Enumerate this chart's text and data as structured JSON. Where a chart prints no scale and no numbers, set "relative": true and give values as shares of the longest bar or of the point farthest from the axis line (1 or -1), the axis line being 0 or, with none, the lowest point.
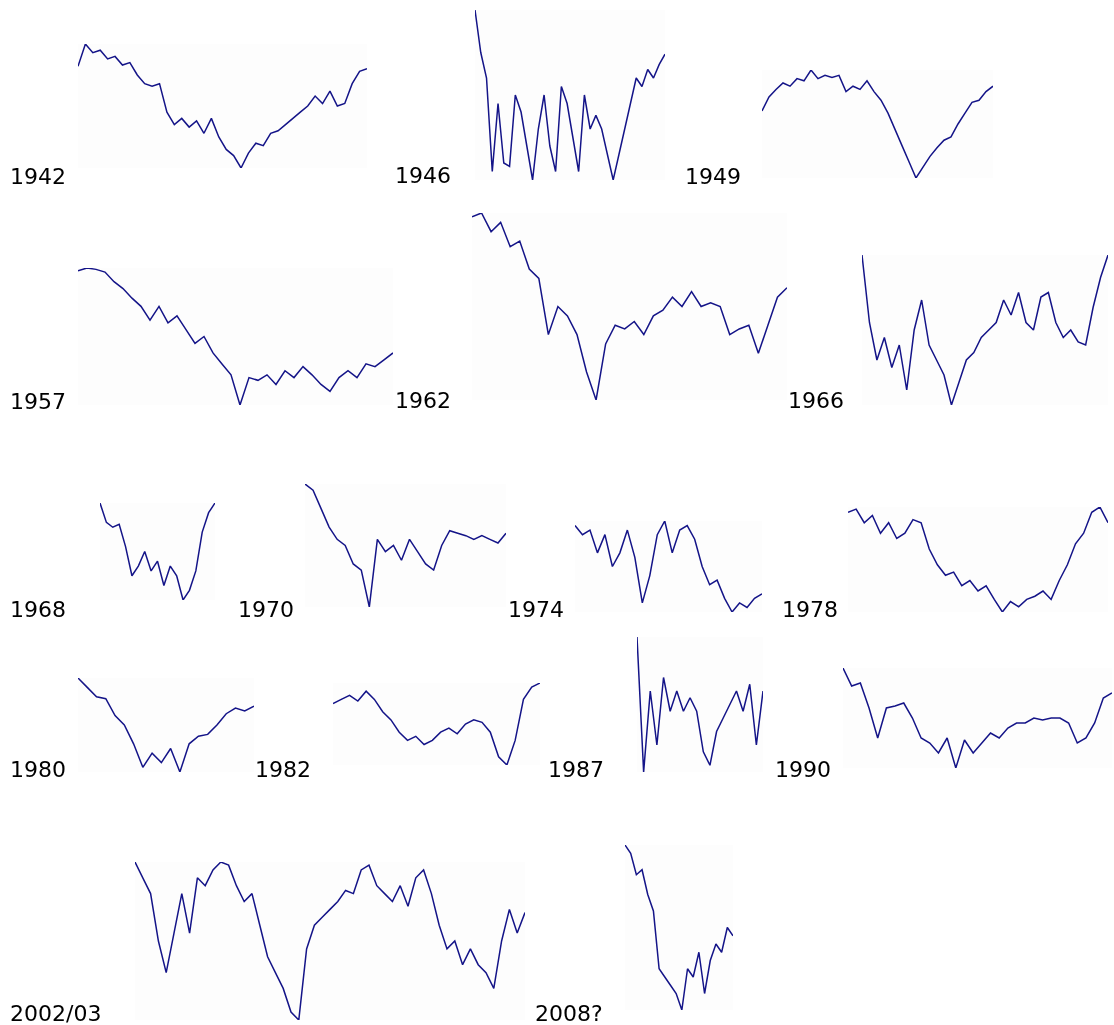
{
  "chart_data": [
    {
      "type": "line",
      "title": "1942",
      "relative": true,
      "categories": [
        null,
        null,
        null,
        null,
        null,
        null,
        null,
        null,
        null,
        null,
        null,
        null,
        null,
        null,
        null,
        null,
        null,
        null,
        null,
        null,
        null,
        null,
        null,
        null,
        null,
        null,
        null,
        null,
        null,
        null,
        null,
        null,
        null,
        null,
        null,
        null,
        null,
        null,
        null,
        null
      ],
      "series": [
        {
          "color": "#141488",
          "values": [
            0.82,
            1,
            0.93,
            0.95,
            0.88,
            0.9,
            0.83,
            0.85,
            0.75,
            0.68,
            0.66,
            0.68,
            0.45,
            0.35,
            0.4,
            0.33,
            0.38,
            0.28,
            0.4,
            0.25,
            0.15,
            0.1,
            0,
            0.12,
            0.2,
            0.18,
            0.28,
            0.3,
            0.35,
            0.4,
            0.45,
            0.5,
            0.58,
            0.52,
            0.62,
            0.5,
            0.52,
            0.68,
            0.78,
            0.8
          ]
        }
      ]
    },
    {
      "type": "line",
      "title": "1946",
      "relative": true,
      "categories": [
        null,
        null,
        null,
        null,
        null,
        null,
        null,
        null,
        null,
        null,
        null,
        null,
        null,
        null,
        null,
        null,
        null,
        null,
        null,
        null,
        null,
        null,
        null,
        null,
        null,
        null,
        null,
        null,
        null,
        null,
        null,
        null,
        null,
        null
      ],
      "series": [
        {
          "color": "#141488",
          "values": [
            1,
            0.75,
            0.6,
            0.05,
            0.45,
            0.1,
            0.08,
            0.5,
            0.4,
            0.2,
            0,
            0.3,
            0.5,
            0.2,
            0.05,
            0.55,
            0.45,
            0.25,
            0.05,
            0.5,
            0.3,
            0.38,
            0.3,
            0.15,
            0,
            0.15,
            0.3,
            0.45,
            0.6,
            0.55,
            0.65,
            0.6,
            0.68,
            0.74
          ]
        }
      ]
    },
    {
      "type": "line",
      "title": "1949",
      "relative": true,
      "categories": [
        null,
        null,
        null,
        null,
        null,
        null,
        null,
        null,
        null,
        null,
        null,
        null,
        null,
        null,
        null,
        null,
        null,
        null,
        null,
        null,
        null,
        null,
        null,
        null,
        null,
        null,
        null,
        null,
        null,
        null,
        null,
        null,
        null,
        null
      ],
      "series": [
        {
          "color": "#141488",
          "values": [
            0.62,
            0.75,
            0.82,
            0.88,
            0.85,
            0.92,
            0.9,
            1,
            0.92,
            0.95,
            0.93,
            0.95,
            0.8,
            0.85,
            0.82,
            0.9,
            0.8,
            0.72,
            0.6,
            0.45,
            0.3,
            0.15,
            0,
            0.1,
            0.2,
            0.28,
            0.35,
            0.38,
            0.5,
            0.6,
            0.7,
            0.72,
            0.8,
            0.85
          ]
        }
      ]
    },
    {
      "type": "line",
      "title": "1957",
      "relative": true,
      "categories": [
        null,
        null,
        null,
        null,
        null,
        null,
        null,
        null,
        null,
        null,
        null,
        null,
        null,
        null,
        null,
        null,
        null,
        null,
        null,
        null,
        null,
        null,
        null,
        null,
        null,
        null,
        null,
        null,
        null,
        null,
        null,
        null,
        null,
        null,
        null,
        null
      ],
      "series": [
        {
          "color": "#141488",
          "values": [
            0.98,
            1,
            0.99,
            0.97,
            0.9,
            0.85,
            0.78,
            0.72,
            0.62,
            0.72,
            0.6,
            0.65,
            0.55,
            0.45,
            0.5,
            0.38,
            0.3,
            0.22,
            0,
            0.2,
            0.18,
            0.22,
            0.15,
            0.25,
            0.2,
            0.28,
            0.22,
            0.15,
            0.1,
            0.2,
            0.25,
            0.2,
            0.3,
            0.28,
            0.33,
            0.38
          ]
        }
      ]
    },
    {
      "type": "line",
      "title": "1962",
      "relative": true,
      "categories": [
        null,
        null,
        null,
        null,
        null,
        null,
        null,
        null,
        null,
        null,
        null,
        null,
        null,
        null,
        null,
        null,
        null,
        null,
        null,
        null,
        null,
        null,
        null,
        null,
        null,
        null,
        null,
        null,
        null,
        null,
        null,
        null,
        null,
        null
      ],
      "series": [
        {
          "color": "#141488",
          "values": [
            0.98,
            1,
            0.9,
            0.95,
            0.82,
            0.85,
            0.7,
            0.65,
            0.35,
            0.5,
            0.45,
            0.35,
            0.15,
            0,
            0.3,
            0.4,
            0.38,
            0.42,
            0.35,
            0.45,
            0.48,
            0.55,
            0.5,
            0.58,
            0.5,
            0.52,
            0.5,
            0.35,
            0.38,
            0.4,
            0.25,
            0.4,
            0.55,
            0.6
          ]
        }
      ]
    },
    {
      "type": "line",
      "title": "1966",
      "relative": true,
      "categories": [
        null,
        null,
        null,
        null,
        null,
        null,
        null,
        null,
        null,
        null,
        null,
        null,
        null,
        null,
        null,
        null,
        null,
        null,
        null,
        null,
        null,
        null,
        null,
        null,
        null,
        null,
        null,
        null,
        null,
        null,
        null,
        null,
        null,
        null
      ],
      "series": [
        {
          "color": "#141488",
          "values": [
            1,
            0.55,
            0.3,
            0.45,
            0.25,
            0.4,
            0.1,
            0.5,
            0.7,
            0.4,
            0.3,
            0.2,
            0,
            0.15,
            0.3,
            0.35,
            0.45,
            0.5,
            0.55,
            0.7,
            0.6,
            0.75,
            0.55,
            0.5,
            0.72,
            0.75,
            0.55,
            0.45,
            0.5,
            0.42,
            0.4,
            0.65,
            0.85,
            1
          ]
        }
      ]
    },
    {
      "type": "line",
      "title": "1968",
      "relative": true,
      "categories": [
        null,
        null,
        null,
        null,
        null,
        null,
        null,
        null,
        null,
        null,
        null,
        null,
        null,
        null,
        null,
        null,
        null,
        null,
        null
      ],
      "series": [
        {
          "color": "#141488",
          "values": [
            1,
            0.8,
            0.75,
            0.78,
            0.55,
            0.25,
            0.35,
            0.5,
            0.3,
            0.4,
            0.15,
            0.35,
            0.25,
            0,
            0.1,
            0.3,
            0.7,
            0.9,
            1
          ]
        }
      ]
    },
    {
      "type": "line",
      "title": "1970",
      "relative": true,
      "categories": [
        null,
        null,
        null,
        null,
        null,
        null,
        null,
        null,
        null,
        null,
        null,
        null,
        null,
        null,
        null,
        null,
        null,
        null,
        null,
        null,
        null,
        null,
        null,
        null,
        null,
        null
      ],
      "series": [
        {
          "color": "#141488",
          "values": [
            1,
            0.95,
            0.8,
            0.65,
            0.55,
            0.5,
            0.35,
            0.3,
            0,
            0.55,
            0.45,
            0.5,
            0.38,
            0.55,
            0.45,
            0.35,
            0.3,
            0.5,
            0.62,
            0.6,
            0.58,
            0.55,
            0.58,
            0.55,
            0.52,
            0.6
          ]
        }
      ]
    },
    {
      "type": "line",
      "title": "1974",
      "relative": true,
      "categories": [
        null,
        null,
        null,
        null,
        null,
        null,
        null,
        null,
        null,
        null,
        null,
        null,
        null,
        null,
        null,
        null,
        null,
        null,
        null,
        null,
        null,
        null,
        null,
        null,
        null,
        null
      ],
      "series": [
        {
          "color": "#141488",
          "values": [
            0.95,
            0.85,
            0.9,
            0.65,
            0.85,
            0.5,
            0.65,
            0.9,
            0.6,
            0.1,
            0.4,
            0.85,
            1,
            0.65,
            0.9,
            0.95,
            0.8,
            0.5,
            0.3,
            0.35,
            0.15,
            0,
            0.1,
            0.05,
            0.15,
            0.2
          ]
        }
      ]
    },
    {
      "type": "line",
      "title": "1978",
      "relative": true,
      "categories": [
        null,
        null,
        null,
        null,
        null,
        null,
        null,
        null,
        null,
        null,
        null,
        null,
        null,
        null,
        null,
        null,
        null,
        null,
        null,
        null,
        null,
        null,
        null,
        null,
        null,
        null,
        null,
        null,
        null,
        null,
        null,
        null,
        null
      ],
      "series": [
        {
          "color": "#141488",
          "values": [
            0.95,
            0.98,
            0.85,
            0.92,
            0.75,
            0.85,
            0.7,
            0.75,
            0.88,
            0.85,
            0.6,
            0.45,
            0.35,
            0.38,
            0.25,
            0.3,
            0.2,
            0.25,
            0.12,
            0,
            0.1,
            0.05,
            0.12,
            0.15,
            0.2,
            0.12,
            0.3,
            0.45,
            0.65,
            0.75,
            0.95,
            1,
            0.85
          ]
        }
      ]
    },
    {
      "type": "line",
      "title": "1980",
      "relative": true,
      "categories": [
        null,
        null,
        null,
        null,
        null,
        null,
        null,
        null,
        null,
        null,
        null,
        null,
        null,
        null,
        null,
        null,
        null,
        null,
        null,
        null
      ],
      "series": [
        {
          "color": "#141488",
          "values": [
            1,
            0.9,
            0.8,
            0.78,
            0.6,
            0.5,
            0.3,
            0.05,
            0.2,
            0.1,
            0.25,
            0,
            0.3,
            0.38,
            0.4,
            0.5,
            0.62,
            0.68,
            0.65,
            0.7
          ]
        }
      ]
    },
    {
      "type": "line",
      "title": "1982",
      "relative": true,
      "categories": [
        null,
        null,
        null,
        null,
        null,
        null,
        null,
        null,
        null,
        null,
        null,
        null,
        null,
        null,
        null,
        null,
        null,
        null,
        null,
        null,
        null,
        null,
        null,
        null,
        null,
        null
      ],
      "series": [
        {
          "color": "#141488",
          "values": [
            0.75,
            0.8,
            0.85,
            0.78,
            0.9,
            0.8,
            0.65,
            0.55,
            0.4,
            0.3,
            0.35,
            0.25,
            0.3,
            0.4,
            0.45,
            0.38,
            0.5,
            0.55,
            0.52,
            0.4,
            0.1,
            0,
            0.3,
            0.8,
            0.95,
            1
          ]
        }
      ]
    },
    {
      "type": "line",
      "title": "1987",
      "relative": true,
      "categories": [
        null,
        null,
        null,
        null,
        null,
        null,
        null,
        null,
        null,
        null,
        null,
        null,
        null,
        null,
        null,
        null,
        null,
        null,
        null,
        null
      ],
      "series": [
        {
          "color": "#141488",
          "values": [
            1,
            0,
            0.6,
            0.2,
            0.7,
            0.45,
            0.6,
            0.45,
            0.55,
            0.45,
            0.15,
            0.05,
            0.3,
            0.4,
            0.5,
            0.6,
            0.45,
            0.65,
            0.2,
            0.6
          ]
        }
      ]
    },
    {
      "type": "line",
      "title": "1990",
      "relative": true,
      "categories": [
        null,
        null,
        null,
        null,
        null,
        null,
        null,
        null,
        null,
        null,
        null,
        null,
        null,
        null,
        null,
        null,
        null,
        null,
        null,
        null,
        null,
        null,
        null,
        null,
        null,
        null,
        null,
        null,
        null,
        null,
        null,
        null
      ],
      "series": [
        {
          "color": "#141488",
          "values": [
            1,
            0.82,
            0.85,
            0.6,
            0.3,
            0.6,
            0.62,
            0.65,
            0.5,
            0.3,
            0.25,
            0.15,
            0.3,
            0,
            0.28,
            0.15,
            0.25,
            0.35,
            0.3,
            0.4,
            0.45,
            0.45,
            0.5,
            0.48,
            0.5,
            0.5,
            0.45,
            0.25,
            0.3,
            0.45,
            0.7,
            0.75
          ]
        }
      ]
    },
    {
      "type": "line",
      "title": "2002/03",
      "relative": true,
      "categories": [
        null,
        null,
        null,
        null,
        null,
        null,
        null,
        null,
        null,
        null,
        null,
        null,
        null,
        null,
        null,
        null,
        null,
        null,
        null,
        null,
        null,
        null,
        null,
        null,
        null,
        null,
        null,
        null,
        null,
        null,
        null,
        null,
        null,
        null,
        null,
        null,
        null,
        null,
        null,
        null,
        null,
        null,
        null,
        null,
        null,
        null,
        null,
        null,
        null,
        null,
        null
      ],
      "series": [
        {
          "color": "#141488",
          "values": [
            1,
            0.9,
            0.8,
            0.5,
            0.3,
            0.55,
            0.8,
            0.55,
            0.9,
            0.85,
            0.95,
            1,
            0.98,
            0.85,
            0.75,
            0.8,
            0.6,
            0.4,
            0.3,
            0.2,
            0.05,
            0,
            0.45,
            0.6,
            0.65,
            0.7,
            0.75,
            0.82,
            0.8,
            0.95,
            0.98,
            0.85,
            0.8,
            0.75,
            0.85,
            0.72,
            0.9,
            0.95,
            0.8,
            0.6,
            0.45,
            0.5,
            0.35,
            0.45,
            0.35,
            0.3,
            0.2,
            0.5,
            0.7,
            0.55,
            0.68
          ]
        }
      ]
    },
    {
      "type": "line",
      "title": "2008?",
      "relative": true,
      "categories": [
        null,
        null,
        null,
        null,
        null,
        null,
        null,
        null,
        null,
        null,
        null,
        null,
        null,
        null,
        null,
        null,
        null,
        null,
        null,
        null
      ],
      "series": [
        {
          "color": "#141488",
          "values": [
            1,
            0.95,
            0.82,
            0.85,
            0.7,
            0.6,
            0.25,
            0.2,
            0.15,
            0.1,
            0,
            0.25,
            0.2,
            0.35,
            0.1,
            0.3,
            0.4,
            0.35,
            0.5,
            0.45
          ]
        }
      ]
    }
  ]
}
